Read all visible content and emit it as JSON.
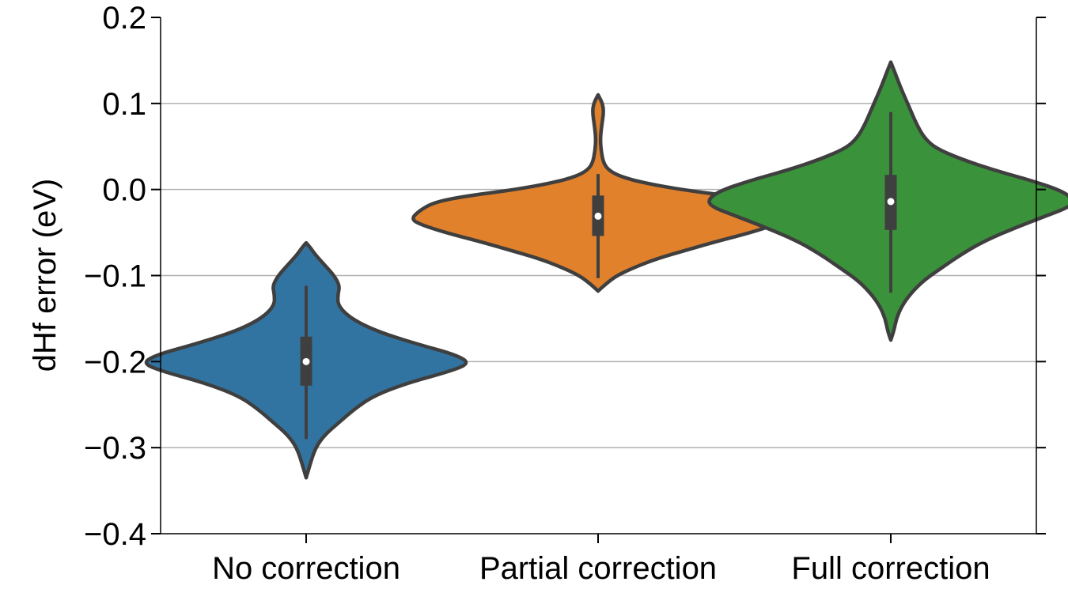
{
  "chart_data": {
    "type": "violin",
    "ylabel": "dHf error (eV)",
    "ylim": [
      -0.4,
      0.2
    ],
    "yticks": [
      -0.4,
      -0.3,
      -0.2,
      -0.1,
      0.0,
      0.1,
      0.2
    ],
    "ytick_labels": [
      "−0.4",
      "−0.3",
      "−0.2",
      "−0.1",
      "0.0",
      "0.1",
      "0.2"
    ],
    "grid": "horizontal",
    "categories": [
      "No correction",
      "Partial correction",
      "Full correction"
    ],
    "series": [
      {
        "category": "No correction",
        "color": "#3274a1",
        "min": -0.335,
        "max": -0.062,
        "whisker_low": -0.29,
        "whisker_high": -0.112,
        "q1": -0.228,
        "q3": -0.171,
        "median": -0.2,
        "density": [
          [
            -0.335,
            0.0
          ],
          [
            -0.32,
            0.01
          ],
          [
            -0.3,
            0.025
          ],
          [
            -0.285,
            0.05
          ],
          [
            -0.27,
            0.09
          ],
          [
            -0.255,
            0.13
          ],
          [
            -0.24,
            0.18
          ],
          [
            -0.225,
            0.27
          ],
          [
            -0.212,
            0.38
          ],
          [
            -0.202,
            0.44
          ],
          [
            -0.192,
            0.4
          ],
          [
            -0.18,
            0.3
          ],
          [
            -0.165,
            0.19
          ],
          [
            -0.15,
            0.12
          ],
          [
            -0.135,
            0.085
          ],
          [
            -0.122,
            0.085
          ],
          [
            -0.112,
            0.09
          ],
          [
            -0.1,
            0.075
          ],
          [
            -0.088,
            0.05
          ],
          [
            -0.076,
            0.025
          ],
          [
            -0.068,
            0.012
          ],
          [
            -0.062,
            0.0
          ]
        ]
      },
      {
        "category": "Partial correction",
        "color": "#e1812c",
        "min": -0.118,
        "max": 0.11,
        "whisker_low": -0.103,
        "whisker_high": 0.018,
        "q1": -0.054,
        "q3": -0.007,
        "median": -0.031,
        "density": [
          [
            -0.118,
            0.0
          ],
          [
            -0.11,
            0.02
          ],
          [
            -0.1,
            0.05
          ],
          [
            -0.09,
            0.1
          ],
          [
            -0.08,
            0.16
          ],
          [
            -0.07,
            0.24
          ],
          [
            -0.06,
            0.32
          ],
          [
            -0.05,
            0.41
          ],
          [
            -0.04,
            0.48
          ],
          [
            -0.034,
            0.5
          ],
          [
            -0.025,
            0.48
          ],
          [
            -0.015,
            0.44
          ],
          [
            -0.008,
            0.36
          ],
          [
            0.0,
            0.22
          ],
          [
            0.008,
            0.12
          ],
          [
            0.015,
            0.06
          ],
          [
            0.022,
            0.03
          ],
          [
            0.03,
            0.015
          ],
          [
            0.045,
            0.008
          ],
          [
            0.06,
            0.006
          ],
          [
            0.075,
            0.01
          ],
          [
            0.09,
            0.015
          ],
          [
            0.1,
            0.012
          ],
          [
            0.11,
            0.0
          ]
        ]
      },
      {
        "category": "Full correction",
        "color": "#3a923a",
        "min": -0.175,
        "max": 0.148,
        "whisker_low": -0.12,
        "whisker_high": 0.09,
        "q1": -0.047,
        "q3": 0.017,
        "median": -0.014,
        "density": [
          [
            -0.175,
            0.0
          ],
          [
            -0.165,
            0.008
          ],
          [
            -0.15,
            0.015
          ],
          [
            -0.135,
            0.03
          ],
          [
            -0.12,
            0.055
          ],
          [
            -0.105,
            0.09
          ],
          [
            -0.09,
            0.14
          ],
          [
            -0.075,
            0.19
          ],
          [
            -0.06,
            0.25
          ],
          [
            -0.045,
            0.33
          ],
          [
            -0.03,
            0.42
          ],
          [
            -0.02,
            0.48
          ],
          [
            -0.012,
            0.49
          ],
          [
            -0.002,
            0.46
          ],
          [
            0.01,
            0.38
          ],
          [
            0.022,
            0.28
          ],
          [
            0.035,
            0.19
          ],
          [
            0.048,
            0.12
          ],
          [
            0.06,
            0.09
          ],
          [
            0.075,
            0.07
          ],
          [
            0.09,
            0.055
          ],
          [
            0.105,
            0.04
          ],
          [
            0.12,
            0.025
          ],
          [
            0.135,
            0.012
          ],
          [
            0.148,
            0.0
          ]
        ]
      }
    ]
  }
}
